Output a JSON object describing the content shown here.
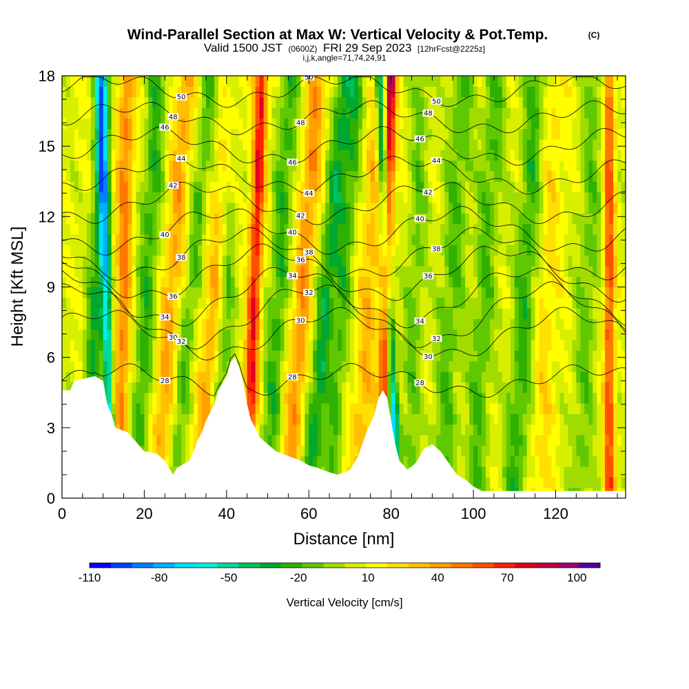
{
  "chart_data": {
    "type": "heatmap",
    "title": "Wind-Parallel Section at Max W: Vertical Velocity & Pot.Temp.",
    "title_mark": "(C)",
    "subtitle_prefix": "Valid 1500 JST",
    "subtitle_zulu": "(0600Z)",
    "subtitle_date": "FRI 29 Sep 2023",
    "subtitle_fcst": "[12hrFcst@2225z]",
    "subtitle2": "i,j,k,angle=71,74,24,91",
    "xlabel": "Distance [nm]",
    "ylabel": "Height [Kft MSL]",
    "xlim": [
      0,
      137
    ],
    "ylim": [
      0,
      18
    ],
    "x_ticks": [
      0,
      20,
      40,
      60,
      80,
      100,
      120
    ],
    "y_ticks": [
      0,
      3,
      6,
      9,
      12,
      15,
      18
    ],
    "colorbar": {
      "label": "Vertical Velocity [cm/s]",
      "tick_labels": [
        "-110",
        "-80",
        "-50",
        "-20",
        "10",
        "40",
        "70",
        "100"
      ],
      "tick_values": [
        -110,
        -80,
        -50,
        -20,
        10,
        40,
        70,
        100
      ],
      "range": [
        -110,
        110
      ],
      "colors": [
        "#0000ff",
        "#0040ff",
        "#0080ff",
        "#00b0ff",
        "#00e0ff",
        "#00f0e0",
        "#00d8a0",
        "#00c060",
        "#00a830",
        "#30b000",
        "#60c800",
        "#a0dc00",
        "#d8f000",
        "#ffff00",
        "#ffe000",
        "#ffc000",
        "#ffa000",
        "#ff7800",
        "#ff5000",
        "#ff2000",
        "#e00020",
        "#c00040",
        "#a00070",
        "#5000a0"
      ]
    },
    "terrain_kft": [
      [
        0,
        4.6
      ],
      [
        2,
        4.6
      ],
      [
        3,
        5.0
      ],
      [
        8,
        5.2
      ],
      [
        10,
        5.0
      ],
      [
        11,
        4.0
      ],
      [
        12,
        3.6
      ],
      [
        13,
        3.0
      ],
      [
        16,
        2.8
      ],
      [
        17,
        2.6
      ],
      [
        18,
        2.4
      ],
      [
        19,
        2.2
      ],
      [
        20,
        2.0
      ],
      [
        23,
        1.9
      ],
      [
        25,
        1.6
      ],
      [
        27,
        1.0
      ],
      [
        28,
        1.3
      ],
      [
        31,
        1.6
      ],
      [
        32,
        2.0
      ],
      [
        33,
        2.5
      ],
      [
        34,
        2.8
      ],
      [
        35,
        3.3
      ],
      [
        37,
        4.0
      ],
      [
        38,
        4.6
      ],
      [
        40,
        5.2
      ],
      [
        41,
        5.8
      ],
      [
        42,
        6.0
      ],
      [
        43,
        5.6
      ],
      [
        44,
        5.0
      ],
      [
        45,
        4.0
      ],
      [
        46,
        3.3
      ],
      [
        47,
        3.0
      ],
      [
        48,
        2.6
      ],
      [
        50,
        2.3
      ],
      [
        52,
        2.0
      ],
      [
        55,
        1.8
      ],
      [
        58,
        1.6
      ],
      [
        60,
        1.4
      ],
      [
        62,
        1.3
      ],
      [
        65,
        1.1
      ],
      [
        67,
        1.0
      ],
      [
        70,
        1.2
      ],
      [
        72,
        1.8
      ],
      [
        74,
        2.8
      ],
      [
        76,
        3.6
      ],
      [
        77,
        4.3
      ],
      [
        78,
        4.6
      ],
      [
        79,
        4.3
      ],
      [
        80,
        3.3
      ],
      [
        81,
        2.3
      ],
      [
        82,
        1.6
      ],
      [
        84,
        1.2
      ],
      [
        86,
        1.5
      ],
      [
        88,
        2.1
      ],
      [
        90,
        2.3
      ],
      [
        92,
        2.0
      ],
      [
        94,
        1.5
      ],
      [
        96,
        1.0
      ],
      [
        98,
        0.8
      ],
      [
        100,
        0.5
      ],
      [
        102,
        0.3
      ],
      [
        110,
        0.3
      ],
      [
        137,
        0.3
      ]
    ],
    "theta_contours": [
      {
        "label": "28",
        "y_start": 5.0,
        "amp": 0.5
      },
      {
        "label": "30",
        "y_start": 7.0,
        "amp": 0.9
      },
      {
        "label": "32",
        "y_start": 7.8,
        "amp": 1.2
      },
      {
        "label": "34",
        "y_start": 8.6,
        "amp": 1.1
      },
      {
        "label": "36",
        "y_start": 9.6,
        "amp": 1.0
      },
      {
        "label": "38",
        "y_start": 10.4,
        "amp": 0.9
      },
      {
        "label": "40",
        "y_start": 11.4,
        "amp": 0.8
      },
      {
        "label": "42",
        "y_start": 12.6,
        "amp": 0.7
      },
      {
        "label": "44",
        "y_start": 13.8,
        "amp": 0.6
      },
      {
        "label": "46",
        "y_start": 15.0,
        "amp": 0.6
      },
      {
        "label": "48",
        "y_start": 16.2,
        "amp": 0.5
      },
      {
        "label": "50",
        "y_start": 17.4,
        "amp": 0.5
      }
    ]
  }
}
